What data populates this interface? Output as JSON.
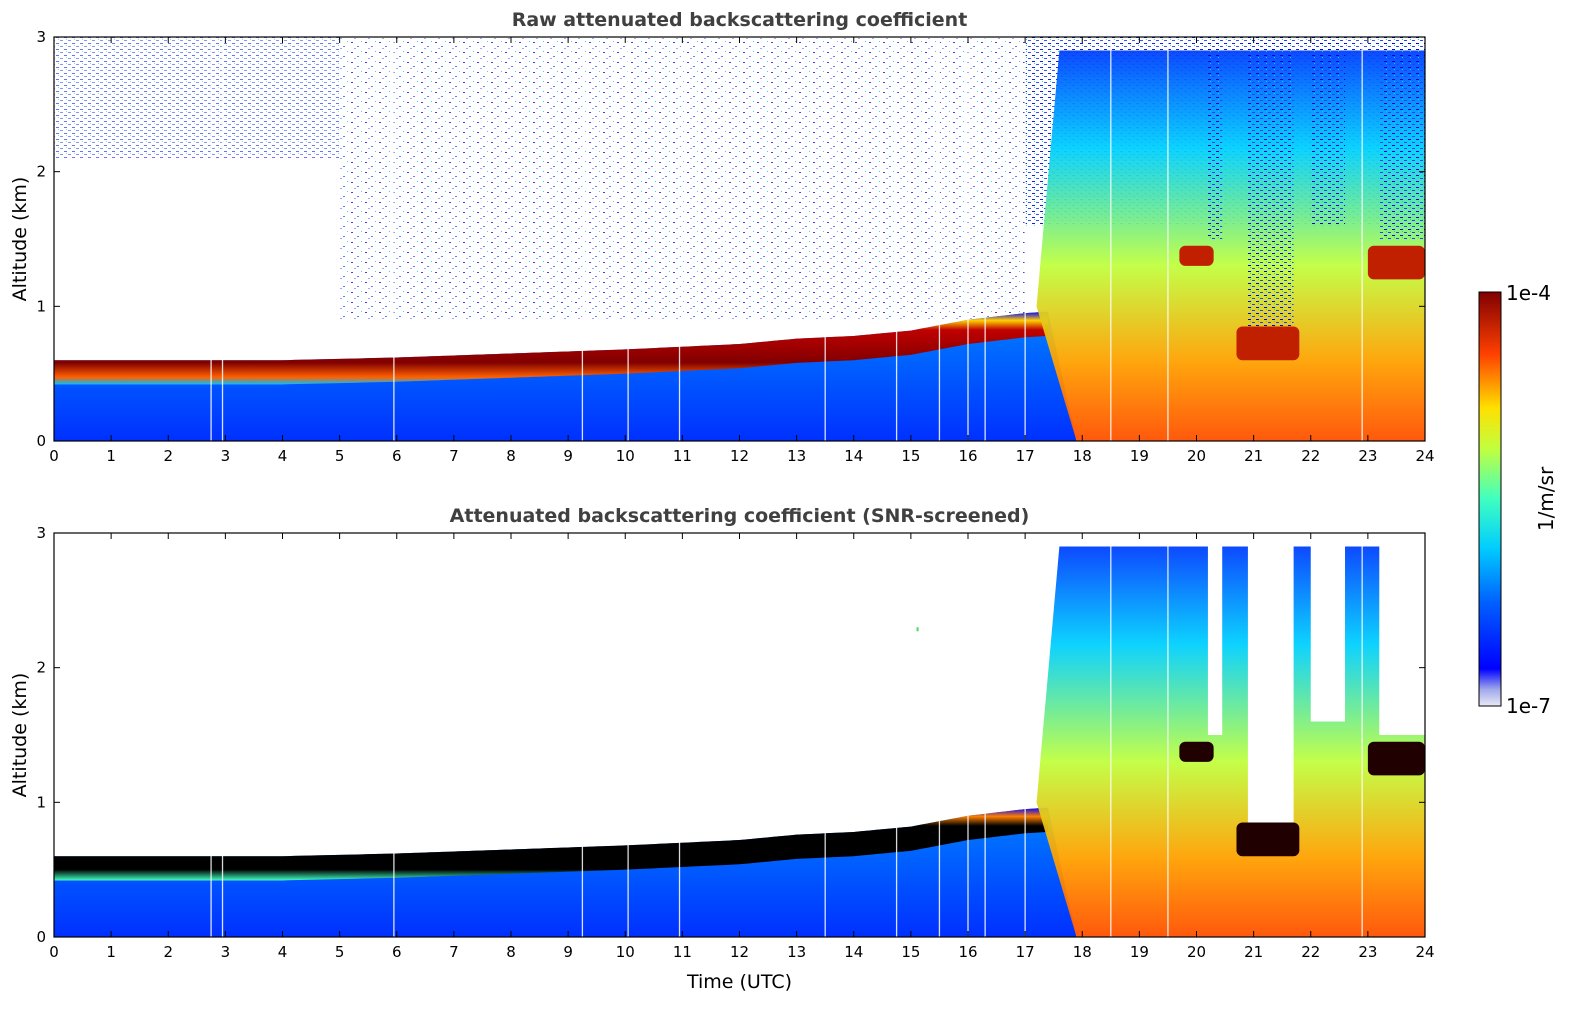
{
  "chart_data": [
    {
      "type": "heatmap",
      "title": "Raw attenuated backscattering coefficient",
      "xlabel": "",
      "ylabel": "Altitude (km)",
      "xlim": [
        0,
        24
      ],
      "ylim": [
        0,
        3
      ],
      "x_ticks": [
        "0",
        "1",
        "2",
        "3",
        "4",
        "5",
        "6",
        "7",
        "8",
        "9",
        "10",
        "11",
        "12",
        "13",
        "14",
        "15",
        "16",
        "17",
        "18",
        "19",
        "20",
        "21",
        "22",
        "23",
        "24"
      ],
      "y_ticks": [
        "0",
        "1",
        "2",
        "3"
      ],
      "aerosol_layer_top_km": {
        "time_utc": [
          0,
          2,
          4,
          6,
          8,
          10,
          12,
          13,
          14,
          15,
          16,
          17,
          17.4
        ],
        "altitude_km": [
          0.6,
          0.6,
          0.6,
          0.62,
          0.65,
          0.68,
          0.72,
          0.76,
          0.78,
          0.82,
          0.9,
          0.95,
          0.96
        ]
      },
      "clouds": [
        {
          "time_utc": [
            19.7,
            20.3
          ],
          "altitude_km": [
            1.3,
            1.45
          ]
        },
        {
          "time_utc": [
            20.7,
            21.8
          ],
          "altitude_km": [
            0.6,
            0.85
          ]
        },
        {
          "time_utc": [
            23.0,
            24.0
          ],
          "altitude_km": [
            1.2,
            1.45
          ]
        }
      ],
      "precipitation_onset_utc": 17.2
    },
    {
      "type": "heatmap",
      "title": "Attenuated backscattering coefficient (SNR-screened)",
      "xlabel": "Time (UTC)",
      "ylabel": "Altitude (km)",
      "xlim": [
        0,
        24
      ],
      "ylim": [
        0,
        3
      ],
      "x_ticks": [
        "0",
        "1",
        "2",
        "3",
        "4",
        "5",
        "6",
        "7",
        "8",
        "9",
        "10",
        "11",
        "12",
        "13",
        "14",
        "15",
        "16",
        "17",
        "18",
        "19",
        "20",
        "21",
        "22",
        "23",
        "24"
      ],
      "y_ticks": [
        "0",
        "1",
        "2",
        "3"
      ]
    }
  ],
  "colorbar": {
    "label": "1/m/sr",
    "max_label": "1e-4",
    "min_label": "1e-7",
    "scale": "log",
    "colormap": "jet"
  }
}
